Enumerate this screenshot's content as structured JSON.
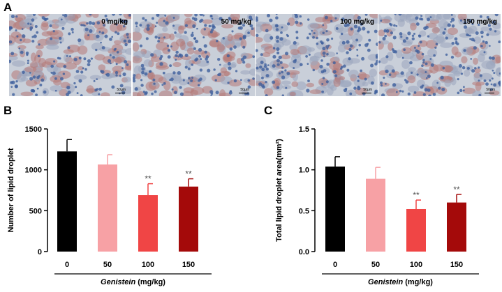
{
  "panels": {
    "a": {
      "letter": "A",
      "micrographs": [
        {
          "dose_label": "0 mg/kg",
          "scale_label": "50μm"
        },
        {
          "dose_label": "50 mg/kg",
          "scale_label": "50μm"
        },
        {
          "dose_label": "100 mg/kg",
          "scale_label": "50μm"
        },
        {
          "dose_label": "150 mg/kg",
          "scale_label": "50μm"
        }
      ]
    },
    "b": {
      "letter": "B"
    },
    "c": {
      "letter": "C"
    }
  },
  "chart_data": [
    {
      "type": "bar",
      "categories": [
        "0",
        "50",
        "100",
        "150"
      ],
      "values": [
        1225,
        1065,
        690,
        795
      ],
      "errors": [
        145,
        120,
        140,
        95
      ],
      "significance": [
        "",
        "",
        "**",
        "**"
      ],
      "colors": [
        "#000000",
        "#f7a1a5",
        "#f04545",
        "#a40a0a"
      ],
      "xlabel_italic": "Genistein",
      "xlabel_rest": " (mg/kg)",
      "ylabel": "Number of lipid droplet",
      "ylim": [
        0,
        1500
      ],
      "yticks": [
        0,
        500,
        1000,
        1500
      ],
      "ytick_labels": [
        "0",
        "500",
        "1000",
        "1500"
      ]
    },
    {
      "type": "bar",
      "categories": [
        "0",
        "50",
        "100",
        "150"
      ],
      "values": [
        1.04,
        0.89,
        0.52,
        0.6
      ],
      "errors": [
        0.12,
        0.14,
        0.11,
        0.1
      ],
      "significance": [
        "",
        "",
        "**",
        "**"
      ],
      "colors": [
        "#000000",
        "#f7a1a5",
        "#f04545",
        "#a40a0a"
      ],
      "xlabel_italic": "Genistein",
      "xlabel_rest": " (mg/kg)",
      "ylabel": "Total lipid droplet area(mm²)",
      "ylim": [
        0,
        1.5
      ],
      "yticks": [
        0,
        0.5,
        1.0,
        1.5
      ],
      "ytick_labels": [
        "0.0",
        "0.5",
        "1.0",
        "1.5"
      ]
    }
  ]
}
